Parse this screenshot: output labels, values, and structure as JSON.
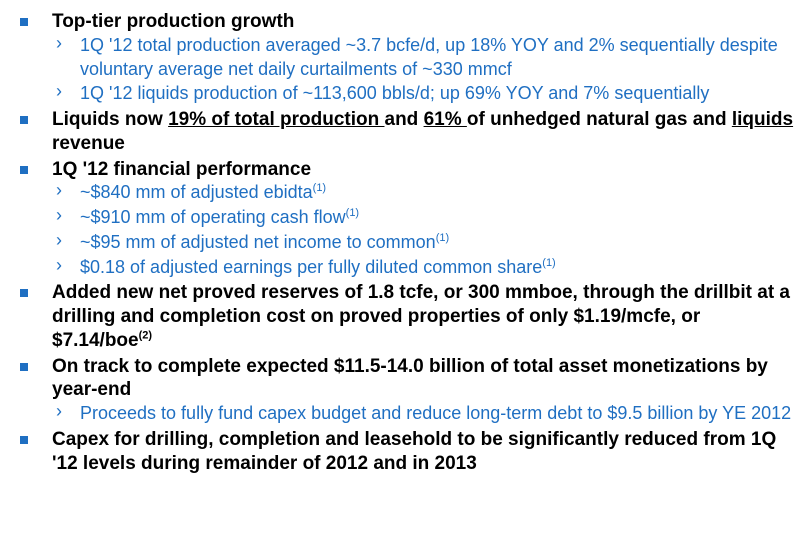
{
  "colors": {
    "accent": "#1f6fc2",
    "body_black": "#000000",
    "background": "#ffffff"
  },
  "typography": {
    "font_family": "Arial",
    "main_size_pt": 14.5,
    "sub_size_pt": 13.5,
    "main_weight": 700,
    "sub_weight": 400,
    "line_height": 1.25
  },
  "bullets": [
    {
      "text": "Top-tier production growth",
      "subs": [
        {
          "text": "1Q '12 total production averaged ~3.7 bcfe/d, up 18% YOY and 2% sequentially despite voluntary average net daily curtailments of ~330 mmcf"
        },
        {
          "text": "1Q '12 liquids production of ~113,600 bbls/d; up 69% YOY and 7% sequentially"
        }
      ]
    },
    {
      "html_parts": [
        {
          "t": "Liquids now "
        },
        {
          "t": "19% of total production ",
          "u": true
        },
        {
          "t": "and "
        },
        {
          "t": "61% ",
          "u": true
        },
        {
          "t": "of unhedged natural gas and "
        },
        {
          "t": "liquids",
          "u": true
        },
        {
          "t": " revenue"
        }
      ],
      "subs": []
    },
    {
      "text": "1Q '12 financial performance",
      "subs": [
        {
          "text": "~$840 mm of adjusted ebidta",
          "sup": "(1)"
        },
        {
          "text": "~$910 mm of operating cash flow",
          "sup": "(1)"
        },
        {
          "text": "~$95 mm of adjusted net income to common",
          "sup": "(1)"
        },
        {
          "text": "$0.18 of adjusted earnings per fully diluted common share",
          "sup": "(1)"
        }
      ]
    },
    {
      "html_parts": [
        {
          "t": "Added new net proved reserves of 1.8 tcfe, or 300 mmboe, through the drillbit at a drilling and completion cost on proved properties of only $1.19/mcfe, or $7.14/boe"
        },
        {
          "t": "(2)",
          "sup": true
        }
      ],
      "subs": []
    },
    {
      "text": "On track to complete expected $11.5-14.0 billion of total asset monetizations by year-end",
      "subs": [
        {
          "text": "Proceeds to fully fund capex budget and reduce long-term debt to $9.5 billion by YE 2012"
        }
      ]
    },
    {
      "text": "Capex for drilling, completion and leasehold to be significantly reduced from 1Q '12 levels during remainder of 2012 and in 2013",
      "subs": []
    }
  ]
}
